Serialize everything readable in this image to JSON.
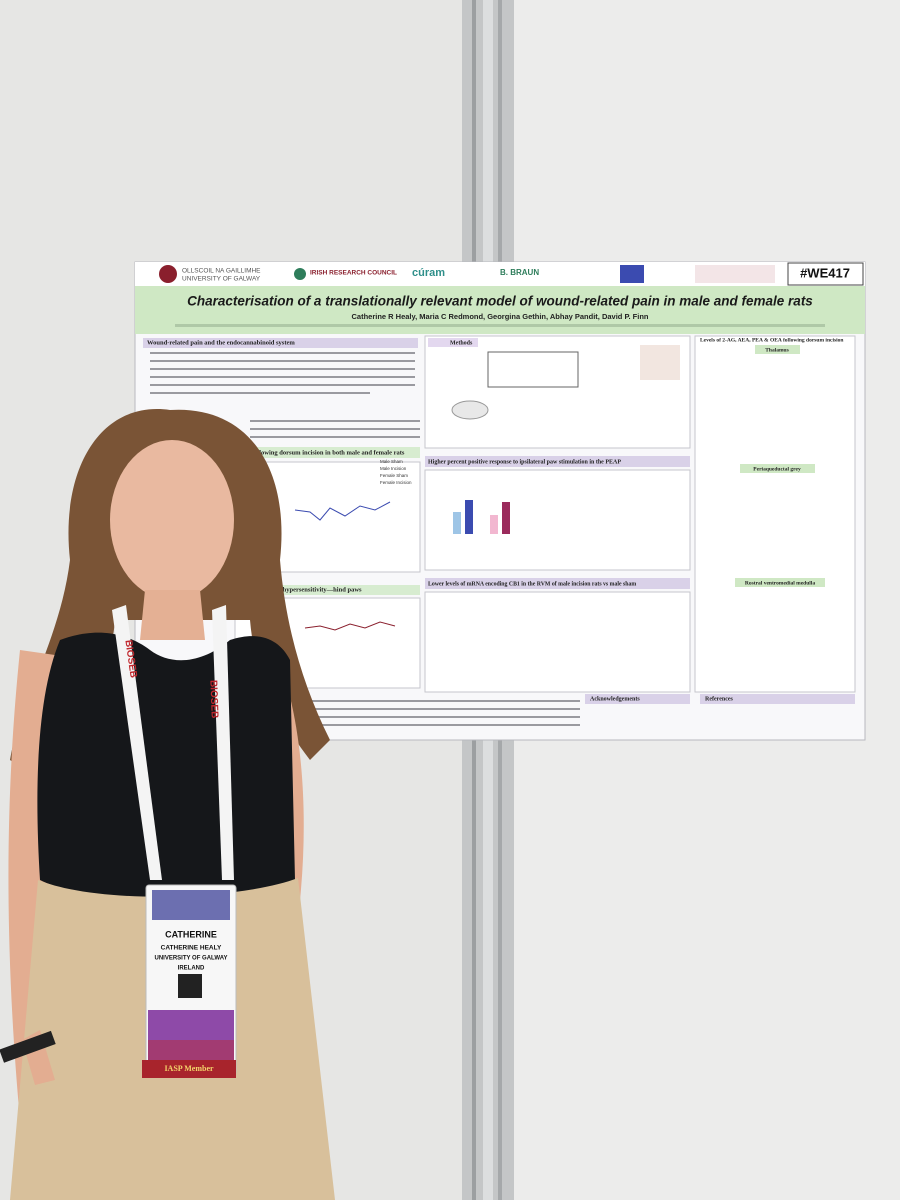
{
  "poster": {
    "hashtag": "#WE417",
    "logos": [
      "OLLSCOIL NA GAILLIMHE",
      "UNIVERSITY OF GALWAY",
      "IRISH RESEARCH COUNCIL",
      "cúram",
      "B. BRAUN"
    ],
    "title": "Characterisation of a translationally relevant model of wound-related pain in male and female rats",
    "authors": "Catherine R Healy, Maria C Redmond, Georgina Gethin, Abhay Pandit, David P. Finn",
    "sections": {
      "intro": "Wound-related pain and the endocannabinoid system",
      "methods": "Methods",
      "sensitivity": "nsitivity following dorsum incision in both male and female rats",
      "mechanical": "echanical hypersensitivity—hind paws",
      "peap": "Higher percent positive response to ipsilateral paw stimulation in the PEAP",
      "mrna": "Lower levels of mRNA encoding CB1 in the RVM of male incision rats vs male sham",
      "levels": "Levels of 2-AG, AEA, PEA & OEA following dorsum incision",
      "thalamus": "Thalamus",
      "pag": "Periaqueductal grey",
      "rvm": "Rostral ventromedial medulla",
      "acknowledgements": "Acknowledgements",
      "references": "References"
    },
    "legend": [
      "Male Sham",
      "Male Incision",
      "Female Sham",
      "Female Incision"
    ]
  },
  "badge": {
    "lanyard": "BIOSEB",
    "first_name": "CATHERINE",
    "full_name": "CATHERINE HEALY",
    "affiliation": "UNIVERSITY OF GALWAY",
    "country": "IRELAND",
    "ribbon": "IASP Member"
  }
}
